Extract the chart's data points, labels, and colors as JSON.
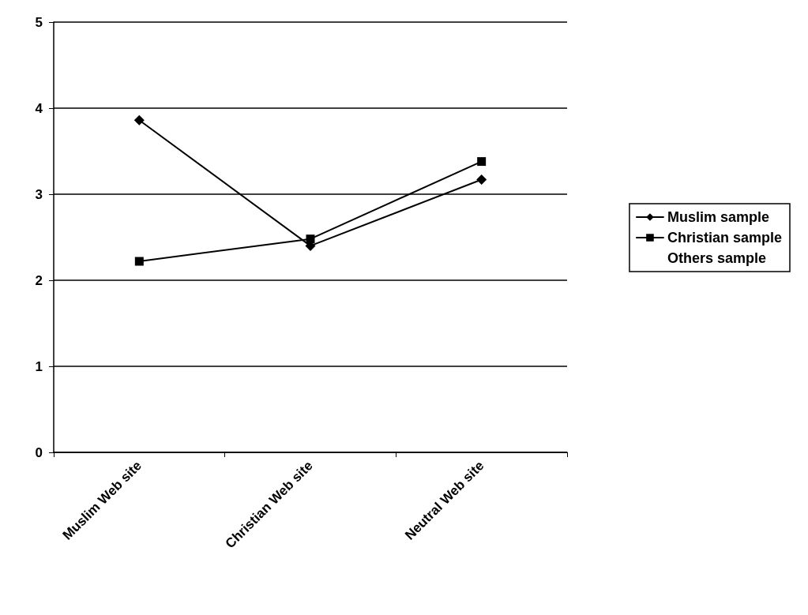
{
  "chart_data": {
    "type": "line",
    "categories": [
      "Muslim Web site",
      "Christian Web site",
      "Neutral Web site"
    ],
    "series": [
      {
        "name": "Muslim sample",
        "color": "#000000",
        "marker": "diamond",
        "values": [
          3.86,
          2.4,
          3.17
        ]
      },
      {
        "name": "Christian sample",
        "color": "#000000",
        "marker": "square",
        "values": [
          2.22,
          2.48,
          3.38
        ]
      },
      {
        "name": "Others sample",
        "marker": "none",
        "values": [
          null,
          null,
          null
        ]
      }
    ],
    "ylim": [
      0,
      5
    ],
    "yticks": [
      0,
      1,
      2,
      3,
      4,
      5
    ],
    "grid": "y",
    "legend": "right",
    "line_style": "solid"
  }
}
